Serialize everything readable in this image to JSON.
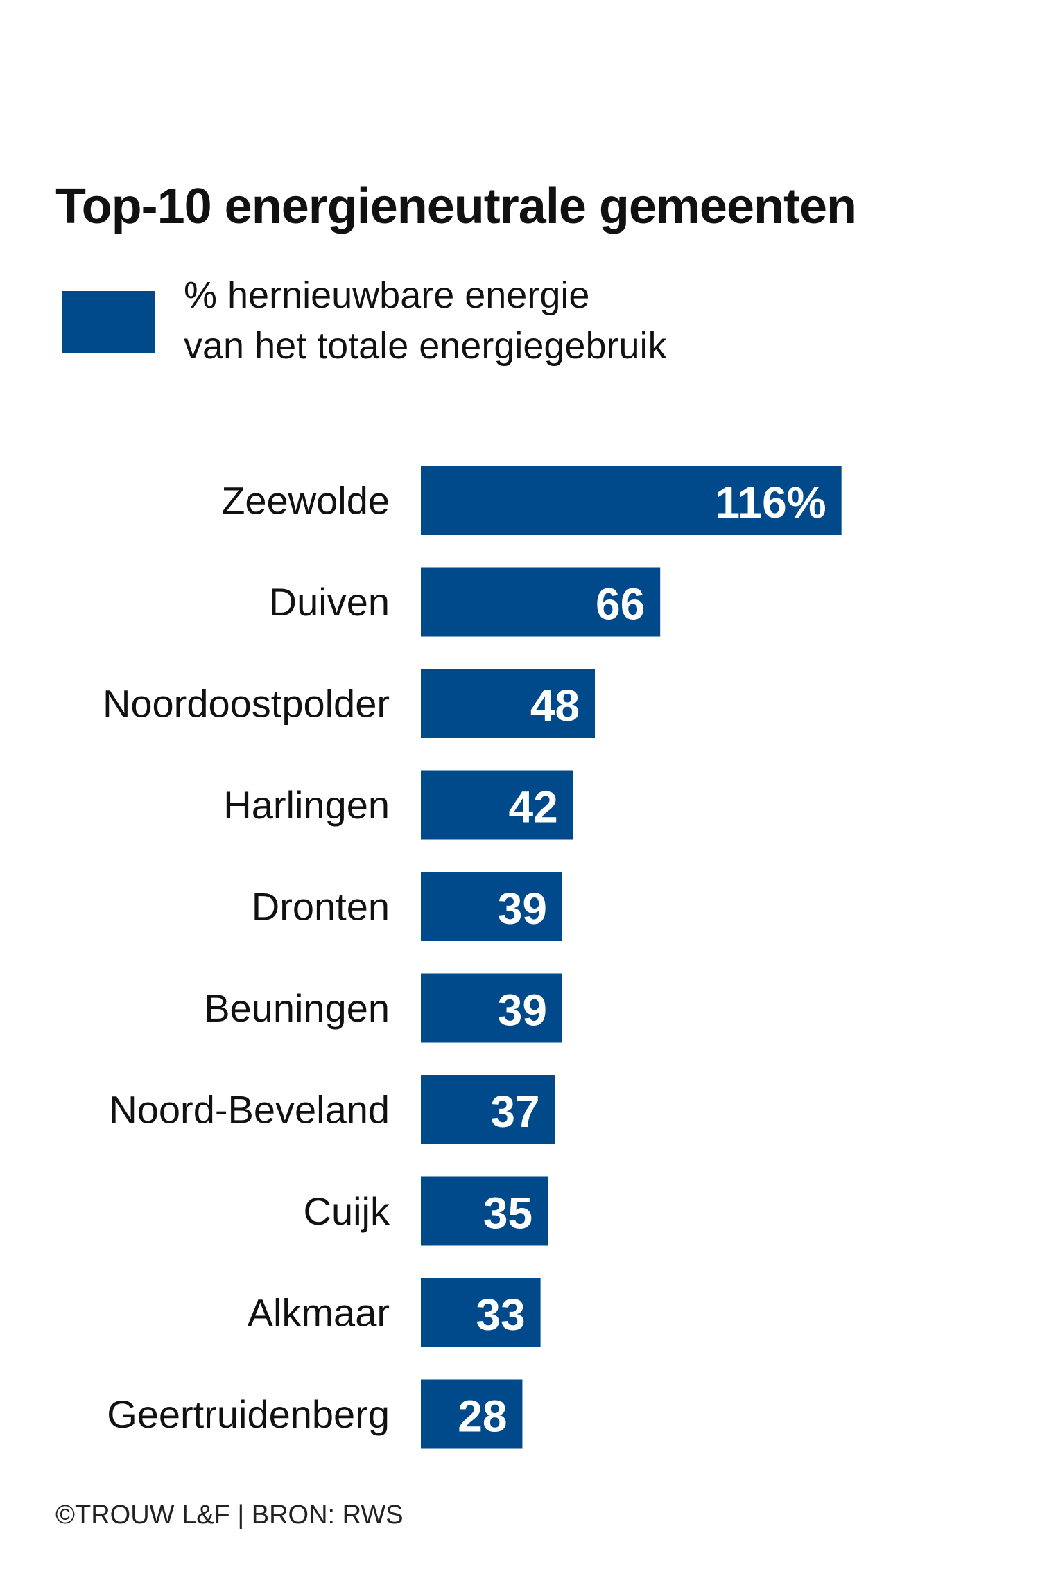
{
  "chart_data": {
    "type": "bar",
    "orientation": "horizontal",
    "title": "Top-10 energieneutrale gemeenten",
    "legend": {
      "label": "% hernieuwbare energie\nvan het totale energiegebruik",
      "color": "#004a8c"
    },
    "categories": [
      "Zeewolde",
      "Duiven",
      "Noordoostpolder",
      "Harlingen",
      "Dronten",
      "Beuningen",
      "Noord-Beveland",
      "Cuijk",
      "Alkmaar",
      "Geertruidenberg"
    ],
    "values": [
      116,
      66,
      48,
      42,
      39,
      39,
      37,
      35,
      33,
      28
    ],
    "value_labels": [
      "116%",
      "66",
      "48",
      "42",
      "39",
      "39",
      "37",
      "35",
      "33",
      "28"
    ],
    "bar_color": "#004a8c",
    "grid": false
  },
  "source": "©TROUW L&F | BRON: RWS"
}
